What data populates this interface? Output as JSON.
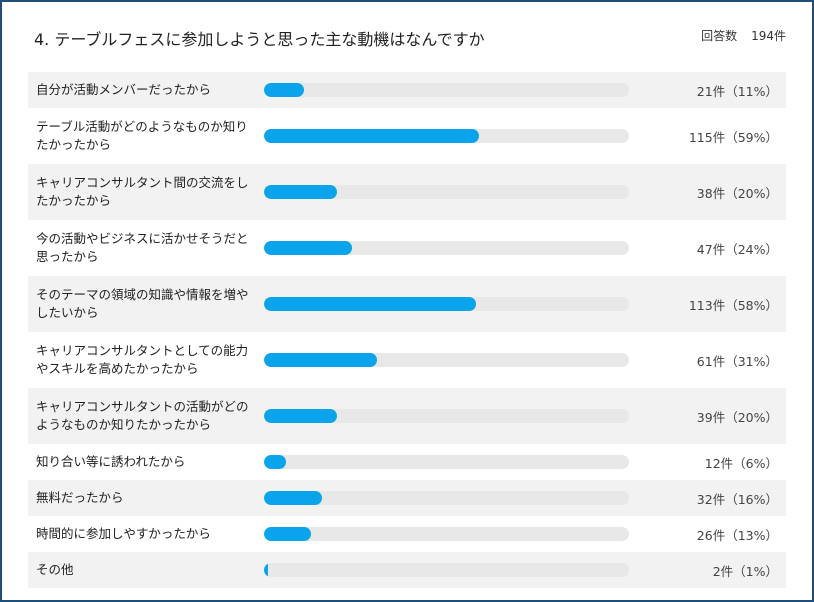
{
  "chart_data": {
    "type": "bar",
    "orientation": "horizontal",
    "title": "4. テーブルフェスに参加しようと思った主な動機はなんですか",
    "response_count_label": "回答数",
    "response_count": "194件",
    "categories": [
      "自分が活動メンバーだったから",
      "テーブル活動がどのようなものか知りたかったから",
      "キャリアコンサルタント間の交流をしたかったから",
      "今の活動やビジネスに活かせそうだと思ったから",
      "そのテーマの領域の知識や情報を増やしたいから",
      "キャリアコンサルタントとしての能力やスキルを高めたかったから",
      "キャリアコンサルタントの活動がどのようなものか知りたかったから",
      "知り合い等に誘われたから",
      "無料だったから",
      "時間的に参加しやすかったから",
      "その他"
    ],
    "values": [
      11,
      59,
      20,
      24,
      58,
      31,
      20,
      6,
      16,
      13,
      1
    ],
    "value_labels": [
      "21件（11%）",
      "115件（59%）",
      "38件（20%）",
      "47件（24%）",
      "113件（58%）",
      "61件（31%）",
      "39件（20%）",
      "12件（6%）",
      "32件（16%）",
      "26件（13%）",
      "2件（1%）"
    ],
    "xlim": [
      0,
      100
    ],
    "color": "#0aa4ec"
  }
}
